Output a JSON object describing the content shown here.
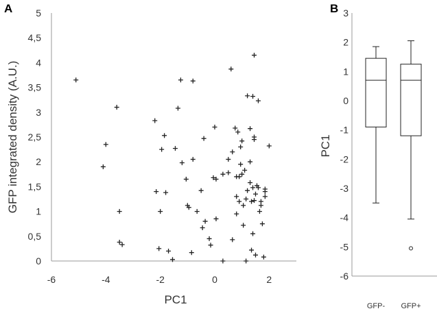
{
  "chart_data": [
    {
      "panel_label": "A",
      "type": "scatter",
      "xlabel": "PC1",
      "ylabel": "GFP integrated density (A.U.)",
      "xlim": [
        -6,
        3
      ],
      "ylim": [
        0,
        5
      ],
      "x_ticks": [
        "-6",
        "-4",
        "-2",
        "0",
        "2"
      ],
      "y_ticks": [
        "0",
        "0,5",
        "1",
        "1,5",
        "2",
        "2,5",
        "3",
        "3,5",
        "4",
        "4,5",
        "5"
      ],
      "marker": "+",
      "grid": false,
      "points": [
        [
          -5.1,
          3.65
        ],
        [
          -4.1,
          1.9
        ],
        [
          -4.0,
          2.35
        ],
        [
          -3.6,
          3.1
        ],
        [
          -3.5,
          1.0
        ],
        [
          -3.5,
          0.38
        ],
        [
          -3.4,
          0.33
        ],
        [
          -2.2,
          2.83
        ],
        [
          -2.15,
          1.4
        ],
        [
          -2.05,
          0.25
        ],
        [
          -2.0,
          1.0
        ],
        [
          -1.95,
          2.25
        ],
        [
          -1.85,
          2.53
        ],
        [
          -1.8,
          1.38
        ],
        [
          -1.7,
          0.2
        ],
        [
          -1.55,
          0.03
        ],
        [
          -1.45,
          2.27
        ],
        [
          -1.35,
          3.08
        ],
        [
          -1.25,
          3.65
        ],
        [
          -1.2,
          1.98
        ],
        [
          -1.05,
          1.65
        ],
        [
          -1.0,
          1.12
        ],
        [
          -0.95,
          1.08
        ],
        [
          -0.85,
          0.17
        ],
        [
          -0.8,
          3.63
        ],
        [
          -0.8,
          2.05
        ],
        [
          -0.65,
          1.0
        ],
        [
          -0.5,
          1.42
        ],
        [
          -0.45,
          0.67
        ],
        [
          -0.4,
          2.47
        ],
        [
          -0.35,
          0.8
        ],
        [
          -0.2,
          0.45
        ],
        [
          -0.15,
          0.32
        ],
        [
          -0.05,
          1.68
        ],
        [
          0.0,
          2.7
        ],
        [
          0.05,
          1.65
        ],
        [
          0.05,
          0.85
        ],
        [
          0.3,
          1.75
        ],
        [
          0.5,
          2.05
        ],
        [
          0.5,
          1.78
        ],
        [
          0.6,
          3.87
        ],
        [
          0.65,
          2.2
        ],
        [
          0.65,
          0.43
        ],
        [
          0.75,
          2.68
        ],
        [
          0.8,
          1.7
        ],
        [
          0.8,
          1.3
        ],
        [
          0.8,
          0.95
        ],
        [
          0.85,
          2.6
        ],
        [
          0.9,
          1.7
        ],
        [
          0.9,
          1.2
        ],
        [
          0.95,
          2.3
        ],
        [
          0.95,
          1.95
        ],
        [
          1.0,
          2.42
        ],
        [
          1.0,
          1.75
        ],
        [
          1.05,
          1.12
        ],
        [
          1.05,
          0.72
        ],
        [
          1.1,
          1.83
        ],
        [
          1.15,
          1.25
        ],
        [
          1.15,
          0.0
        ],
        [
          1.2,
          3.33
        ],
        [
          1.2,
          1.42
        ],
        [
          1.3,
          1.58
        ],
        [
          1.3,
          2.67
        ],
        [
          1.3,
          2.0
        ],
        [
          1.35,
          1.2
        ],
        [
          1.35,
          0.22
        ],
        [
          1.4,
          3.32
        ],
        [
          1.4,
          1.48
        ],
        [
          1.45,
          4.15
        ],
        [
          1.45,
          2.5
        ],
        [
          1.45,
          2.45
        ],
        [
          1.45,
          1.22
        ],
        [
          1.5,
          1.35
        ],
        [
          1.5,
          0.12
        ],
        [
          1.55,
          1.52
        ],
        [
          1.6,
          3.23
        ],
        [
          1.6,
          1.48
        ],
        [
          1.65,
          1.0
        ],
        [
          1.7,
          1.2
        ],
        [
          1.75,
          0.75
        ],
        [
          1.8,
          0.08
        ],
        [
          1.85,
          1.3
        ],
        [
          1.85,
          1.45
        ],
        [
          1.85,
          1.4
        ],
        [
          2.0,
          2.32
        ],
        [
          1.4,
          0.55
        ],
        [
          1.7,
          1.12
        ],
        [
          0.3,
          0.0
        ]
      ]
    },
    {
      "panel_label": "B",
      "type": "box",
      "ylabel": "PC1",
      "ylim": [
        -6,
        3
      ],
      "y_ticks": [
        "3",
        "2",
        "1",
        "0",
        "-1",
        "-2",
        "-3",
        "-4",
        "-5",
        "-6"
      ],
      "categories": [
        "GFP-",
        "GFP+"
      ],
      "boxes": [
        {
          "name": "GFP-",
          "whisker_low": -3.5,
          "q1": -0.9,
          "median": 0.7,
          "q3": 1.45,
          "whisker_high": 1.85,
          "outliers": []
        },
        {
          "name": "GFP+",
          "whisker_low": -4.05,
          "q1": -1.2,
          "median": 0.7,
          "q3": 1.25,
          "whisker_high": 2.05,
          "outliers": [
            -5.05
          ]
        }
      ],
      "grid": false
    }
  ]
}
